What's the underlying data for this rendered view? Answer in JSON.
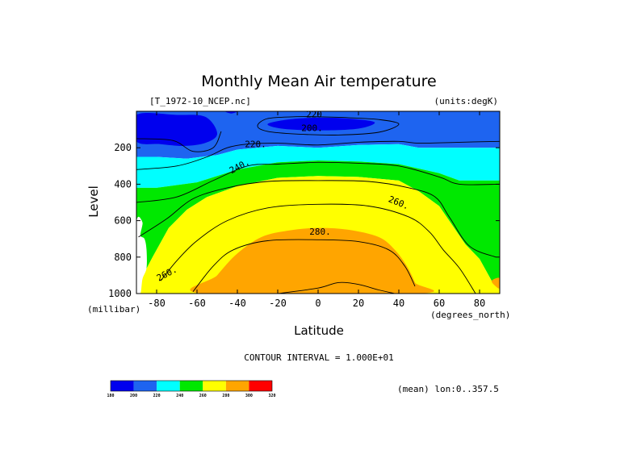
{
  "chart_data": {
    "type": "contour",
    "title": "Monthly Mean Air temperature",
    "file_label": "[T_1972-10_NCEP.nc]",
    "units_label": "(units:degK)",
    "xlabel": "Latitude",
    "xunits": "(degrees_north)",
    "ylabel": "Level",
    "yunits": "(millibar)",
    "xlim": [
      -90,
      90
    ],
    "ylim": [
      1000,
      0
    ],
    "x_ticks": [
      "-80",
      "-60",
      "-40",
      "-20",
      "0",
      "20",
      "40",
      "60",
      "80"
    ],
    "x_tick_values": [
      -80,
      -60,
      -40,
      -20,
      0,
      20,
      40,
      60,
      80
    ],
    "y_ticks": [
      "200",
      "400",
      "600",
      "800",
      "1000"
    ],
    "y_tick_values": [
      200,
      400,
      600,
      800,
      1000
    ],
    "contour_interval_text": "CONTOUR INTERVAL = 1.000E+01",
    "mean_text": "(mean) lon:0..357.5",
    "levels": [
      180,
      200,
      220,
      240,
      260,
      280,
      300,
      320
    ],
    "level_colors": [
      "#0000ee",
      "#1e64f0",
      "#00ffff",
      "#00e800",
      "#ffff00",
      "#ffa500",
      "#ff0000"
    ],
    "contour_labels": [
      {
        "text": "220",
        "lat": -2,
        "p": 15
      },
      {
        "text": "200.",
        "lat": -3,
        "p": 90
      },
      {
        "text": "220.",
        "lat": -31,
        "p": 180
      },
      {
        "text": "240.",
        "lat": -39,
        "p": 300
      },
      {
        "text": "260.",
        "lat": 40,
        "p": 500
      },
      {
        "text": "280.",
        "lat": 1,
        "p": 660
      },
      {
        "text": "260.",
        "lat": -75,
        "p": 890
      }
    ],
    "colorbar": {
      "labels": [
        "180",
        "200",
        "220",
        "240",
        "260",
        "280",
        "300",
        "320"
      ]
    },
    "bands": [
      {
        "color": "#1e64f0",
        "closed": false,
        "points": [
          [
            -90,
            0
          ],
          [
            90,
            0
          ],
          [
            90,
            200
          ],
          [
            50,
            200
          ],
          [
            40,
            180
          ],
          [
            20,
            185
          ],
          [
            0,
            200
          ],
          [
            -20,
            190
          ],
          [
            -40,
            210
          ],
          [
            -50,
            240
          ],
          [
            -65,
            260
          ],
          [
            -80,
            250
          ],
          [
            -90,
            250
          ]
        ]
      },
      {
        "color": "#0000ee",
        "closed": true,
        "points": [
          [
            -25,
            70
          ],
          [
            -15,
            45
          ],
          [
            0,
            35
          ],
          [
            15,
            40
          ],
          [
            28,
            60
          ],
          [
            20,
            95
          ],
          [
            0,
            105
          ],
          [
            -18,
            95
          ]
        ]
      },
      {
        "color": "#0000ee",
        "closed": true,
        "points": [
          [
            -90,
            20
          ],
          [
            -70,
            20
          ],
          [
            -56,
            30
          ],
          [
            -50,
            120
          ],
          [
            -55,
            170
          ],
          [
            -66,
            190
          ],
          [
            -78,
            180
          ],
          [
            -90,
            165
          ]
        ]
      },
      {
        "color": "#0000ee",
        "closed": true,
        "points": [
          [
            -46,
            0
          ],
          [
            -40,
            0
          ],
          [
            -43,
            12
          ]
        ]
      },
      {
        "color": "#00ffff",
        "closed": false,
        "points": [
          [
            -90,
            250
          ],
          [
            -80,
            250
          ],
          [
            -65,
            260
          ],
          [
            -50,
            240
          ],
          [
            -40,
            210
          ],
          [
            -20,
            190
          ],
          [
            0,
            200
          ],
          [
            20,
            185
          ],
          [
            40,
            180
          ],
          [
            50,
            200
          ],
          [
            90,
            200
          ],
          [
            90,
            380
          ],
          [
            70,
            380
          ],
          [
            60,
            340
          ],
          [
            40,
            290
          ],
          [
            20,
            275
          ],
          [
            0,
            270
          ],
          [
            -20,
            280
          ],
          [
            -40,
            320
          ],
          [
            -60,
            390
          ],
          [
            -80,
            420
          ],
          [
            -90,
            420
          ]
        ]
      },
      {
        "color": "#00e800",
        "closed": false,
        "points": [
          [
            -90,
            420
          ],
          [
            -80,
            420
          ],
          [
            -60,
            390
          ],
          [
            -40,
            320
          ],
          [
            -20,
            280
          ],
          [
            0,
            270
          ],
          [
            20,
            275
          ],
          [
            40,
            290
          ],
          [
            60,
            340
          ],
          [
            70,
            380
          ],
          [
            90,
            380
          ],
          [
            90,
            940
          ],
          [
            86,
            930
          ],
          [
            80,
            810
          ],
          [
            73,
            730
          ],
          [
            60,
            520
          ],
          [
            50,
            440
          ],
          [
            40,
            380
          ],
          [
            20,
            360
          ],
          [
            0,
            355
          ],
          [
            -20,
            365
          ],
          [
            -40,
            410
          ],
          [
            -55,
            470
          ],
          [
            -65,
            540
          ],
          [
            -74,
            640
          ],
          [
            -82,
            800
          ],
          [
            -87,
            905
          ],
          [
            -90,
            900
          ]
        ]
      },
      {
        "color": "#ffff00",
        "closed": false,
        "points": [
          [
            -90,
            900
          ],
          [
            -87,
            905
          ],
          [
            -82,
            800
          ],
          [
            -74,
            640
          ],
          [
            -65,
            540
          ],
          [
            -55,
            470
          ],
          [
            -40,
            410
          ],
          [
            -20,
            365
          ],
          [
            0,
            355
          ],
          [
            20,
            360
          ],
          [
            40,
            380
          ],
          [
            50,
            440
          ],
          [
            60,
            520
          ],
          [
            73,
            730
          ],
          [
            80,
            810
          ],
          [
            86,
            930
          ],
          [
            90,
            940
          ],
          [
            90,
            1000
          ],
          [
            -90,
            1000
          ]
        ]
      },
      {
        "color": "#ffa500",
        "closed": true,
        "points": [
          [
            -57,
            1000
          ],
          [
            -50,
            900
          ],
          [
            -40,
            780
          ],
          [
            -28,
            690
          ],
          [
            -15,
            655
          ],
          [
            0,
            640
          ],
          [
            15,
            650
          ],
          [
            30,
            690
          ],
          [
            38,
            760
          ],
          [
            44,
            850
          ],
          [
            48,
            940
          ],
          [
            50,
            1000
          ]
        ]
      },
      {
        "color": "#ffa500",
        "closed": true,
        "points": [
          [
            90,
            915
          ],
          [
            86,
            930
          ],
          [
            88,
            960
          ],
          [
            90,
            970
          ]
        ]
      },
      {
        "color": "#ffffff",
        "closed": true,
        "points": [
          [
            -90,
            610
          ],
          [
            -87,
            610
          ],
          [
            -88,
            680
          ],
          [
            -86,
            700
          ],
          [
            -85,
            760
          ],
          [
            -85,
            860
          ],
          [
            -87,
            920
          ],
          [
            -88,
            1000
          ],
          [
            -90,
            1000
          ]
        ]
      }
    ],
    "isolines": [
      [
        [
          -90,
          320
        ],
        [
          -70,
          300
        ],
        [
          -55,
          250
        ],
        [
          -45,
          200
        ],
        [
          -35,
          180
        ],
        [
          -20,
          175
        ],
        [
          0,
          185
        ],
        [
          20,
          170
        ],
        [
          40,
          165
        ],
        [
          50,
          175
        ],
        [
          70,
          170
        ],
        [
          90,
          165
        ]
      ],
      [
        [
          -25,
          40
        ],
        [
          -12,
          30
        ],
        [
          0,
          30
        ],
        [
          15,
          35
        ],
        [
          30,
          45
        ],
        [
          40,
          70
        ],
        [
          30,
          115
        ],
        [
          10,
          130
        ],
        [
          -10,
          125
        ],
        [
          -25,
          110
        ],
        [
          -30,
          80
        ]
      ],
      [
        [
          -90,
          150
        ],
        [
          -72,
          160
        ],
        [
          -62,
          220
        ],
        [
          -52,
          200
        ],
        [
          -48,
          110
        ]
      ],
      [
        [
          -90,
          500
        ],
        [
          -70,
          470
        ],
        [
          -52,
          380
        ],
        [
          -35,
          300
        ],
        [
          -20,
          290
        ],
        [
          0,
          280
        ],
        [
          20,
          285
        ],
        [
          40,
          300
        ],
        [
          60,
          360
        ],
        [
          70,
          400
        ],
        [
          90,
          400
        ]
      ],
      [
        [
          -89,
          690
        ],
        [
          -75,
          590
        ],
        [
          -62,
          480
        ],
        [
          -45,
          420
        ],
        [
          -25,
          385
        ],
        [
          0,
          380
        ],
        [
          25,
          385
        ],
        [
          45,
          420
        ],
        [
          58,
          470
        ],
        [
          65,
          580
        ],
        [
          75,
          740
        ],
        [
          88,
          800
        ]
      ],
      [
        [
          -78,
          930
        ],
        [
          -70,
          820
        ],
        [
          -60,
          710
        ],
        [
          -45,
          600
        ],
        [
          -25,
          530
        ],
        [
          0,
          510
        ],
        [
          25,
          520
        ],
        [
          45,
          580
        ],
        [
          55,
          660
        ],
        [
          62,
          760
        ],
        [
          70,
          860
        ],
        [
          78,
          1000
        ]
      ],
      [
        [
          -62,
          990
        ],
        [
          -52,
          850
        ],
        [
          -42,
          760
        ],
        [
          -25,
          710
        ],
        [
          0,
          705
        ],
        [
          20,
          715
        ],
        [
          35,
          760
        ],
        [
          43,
          850
        ],
        [
          48,
          960
        ]
      ],
      [
        [
          -20,
          1000
        ],
        [
          0,
          970
        ],
        [
          10,
          940
        ],
        [
          20,
          950
        ],
        [
          30,
          980
        ],
        [
          38,
          1000
        ]
      ]
    ]
  }
}
